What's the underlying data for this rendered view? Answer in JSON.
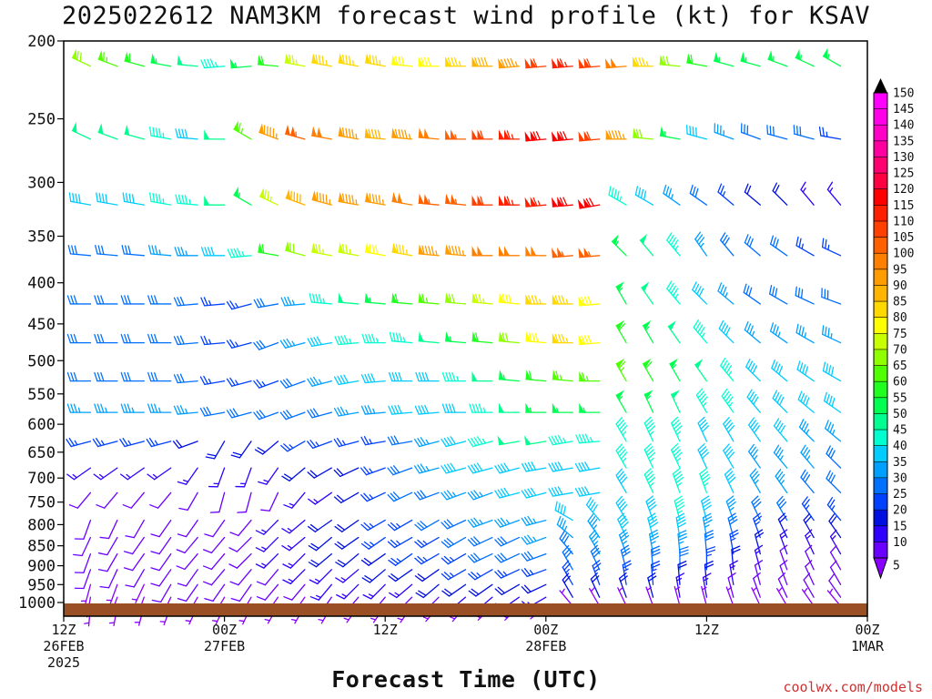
{
  "chart_data": {
    "type": "wind_barb_time_height",
    "title": "2025022612 NAM3KM forecast wind profile (kt) for KSAV",
    "xlabel": "Forecast Time (UTC)",
    "credit": "coolwx.com/models",
    "y_axis": {
      "unit": "hPa",
      "scale": "log",
      "range": [
        1040,
        200
      ],
      "ticks": [
        200,
        250,
        300,
        350,
        400,
        450,
        500,
        550,
        600,
        650,
        700,
        750,
        800,
        850,
        900,
        950,
        1000
      ]
    },
    "x_axis": {
      "range_hours": [
        0,
        60
      ],
      "ticks": [
        {
          "hour": 0,
          "lines": [
            "12Z",
            "26FEB",
            "2025"
          ]
        },
        {
          "hour": 12,
          "lines": [
            "00Z",
            "27FEB"
          ]
        },
        {
          "hour": 24,
          "lines": [
            "12Z"
          ]
        },
        {
          "hour": 36,
          "lines": [
            "00Z",
            "28FEB"
          ]
        },
        {
          "hour": 48,
          "lines": [
            "12Z"
          ]
        },
        {
          "hour": 60,
          "lines": [
            "00Z",
            "1MAR"
          ]
        }
      ]
    },
    "colorbar": {
      "unit": "kt",
      "levels": [
        5,
        10,
        15,
        20,
        25,
        30,
        35,
        40,
        45,
        50,
        55,
        60,
        65,
        70,
        75,
        80,
        85,
        90,
        95,
        100,
        105,
        110,
        115,
        120,
        125,
        130,
        135,
        140,
        145,
        150
      ],
      "colors": [
        "#8a00ff",
        "#6a00ff",
        "#3000ff",
        "#0010e0",
        "#0040ff",
        "#0070ff",
        "#00a0ff",
        "#00ccff",
        "#00ffd0",
        "#00ff90",
        "#00ff50",
        "#20ff20",
        "#50ff00",
        "#90ff00",
        "#c8ff00",
        "#ffff00",
        "#ffd800",
        "#ffb400",
        "#ff9c00",
        "#ff8000",
        "#ff6000",
        "#ff4000",
        "#ff2000",
        "#ff0000",
        "#ff0040",
        "#ff0070",
        "#ff00a0",
        "#ff00c8",
        "#ff00e8",
        "#ff00ff"
      ]
    },
    "levels_hpa": [
      215,
      265,
      320,
      370,
      425,
      475,
      530,
      580,
      630,
      680,
      730,
      790,
      830,
      870,
      910,
      950,
      985,
      1010
    ],
    "hours": [
      0,
      2,
      4,
      6,
      8,
      10,
      12,
      14,
      16,
      18,
      20,
      22,
      24,
      26,
      28,
      30,
      32,
      34,
      36,
      38,
      40,
      42,
      44,
      46,
      48,
      50,
      52,
      54,
      56,
      58,
      60
    ],
    "wind_speed_kt": [
      [
        75,
        70,
        65,
        60,
        55,
        50,
        45,
        55,
        60,
        75,
        85,
        85,
        85,
        80,
        80,
        85,
        90,
        95,
        110,
        115,
        110,
        100,
        85,
        70,
        60,
        55,
        55,
        55,
        55,
        55,
        55
      ],
      [
        50,
        50,
        50,
        50,
        45,
        40,
        50,
        65,
        95,
        105,
        100,
        95,
        90,
        95,
        100,
        105,
        110,
        115,
        120,
        120,
        110,
        95,
        70,
        55,
        40,
        35,
        30,
        30,
        30,
        25,
        25
      ],
      [
        40,
        40,
        40,
        40,
        45,
        45,
        50,
        55,
        75,
        90,
        95,
        95,
        95,
        100,
        105,
        105,
        110,
        115,
        115,
        120,
        120,
        45,
        40,
        35,
        30,
        25,
        20,
        20,
        15,
        15,
        10
      ],
      [
        30,
        30,
        30,
        30,
        35,
        35,
        40,
        45,
        60,
        70,
        75,
        75,
        80,
        85,
        95,
        95,
        100,
        100,
        100,
        105,
        105,
        55,
        50,
        45,
        35,
        30,
        30,
        30,
        25,
        25,
        25
      ],
      [
        30,
        30,
        30,
        30,
        30,
        30,
        25,
        25,
        30,
        35,
        45,
        50,
        55,
        60,
        65,
        70,
        75,
        80,
        85,
        85,
        80,
        55,
        50,
        45,
        40,
        35,
        30,
        30,
        30,
        30,
        30
      ],
      [
        30,
        30,
        30,
        30,
        30,
        30,
        25,
        25,
        30,
        35,
        40,
        45,
        45,
        45,
        50,
        55,
        60,
        70,
        80,
        85,
        80,
        60,
        55,
        50,
        45,
        40,
        35,
        35,
        35,
        35,
        35
      ],
      [
        30,
        30,
        30,
        30,
        30,
        30,
        25,
        25,
        25,
        30,
        35,
        40,
        40,
        40,
        40,
        45,
        50,
        55,
        60,
        65,
        65,
        65,
        60,
        55,
        50,
        45,
        40,
        40,
        40,
        40,
        40
      ],
      [
        35,
        35,
        35,
        35,
        35,
        35,
        30,
        30,
        30,
        30,
        30,
        35,
        35,
        40,
        40,
        40,
        45,
        50,
        55,
        55,
        55,
        55,
        55,
        50,
        45,
        45,
        40,
        40,
        40,
        40,
        40
      ],
      [
        25,
        25,
        25,
        25,
        25,
        20,
        20,
        20,
        20,
        25,
        25,
        25,
        25,
        30,
        35,
        40,
        45,
        50,
        50,
        45,
        45,
        45,
        45,
        45,
        40,
        40,
        40,
        40,
        35,
        35,
        35
      ],
      [
        15,
        15,
        15,
        15,
        15,
        15,
        15,
        15,
        15,
        20,
        20,
        20,
        25,
        30,
        35,
        40,
        40,
        40,
        40,
        40,
        40,
        45,
        45,
        45,
        40,
        40,
        35,
        35,
        35,
        30,
        30
      ],
      [
        10,
        10,
        10,
        10,
        10,
        10,
        10,
        10,
        10,
        15,
        15,
        20,
        25,
        30,
        30,
        35,
        35,
        40,
        40,
        40,
        40,
        40,
        45,
        45,
        45,
        40,
        35,
        35,
        30,
        30,
        25
      ],
      [
        10,
        10,
        10,
        10,
        10,
        10,
        10,
        10,
        15,
        15,
        20,
        20,
        25,
        25,
        30,
        30,
        35,
        35,
        35,
        40,
        40,
        40,
        40,
        45,
        40,
        35,
        30,
        30,
        25,
        25,
        25
      ],
      [
        10,
        10,
        10,
        10,
        10,
        10,
        10,
        10,
        15,
        15,
        20,
        20,
        25,
        25,
        25,
        30,
        30,
        30,
        35,
        35,
        35,
        40,
        40,
        40,
        35,
        30,
        25,
        20,
        20,
        20,
        20
      ],
      [
        10,
        10,
        10,
        10,
        10,
        10,
        10,
        10,
        15,
        15,
        20,
        20,
        20,
        25,
        25,
        25,
        30,
        30,
        30,
        30,
        35,
        35,
        35,
        35,
        30,
        25,
        20,
        15,
        15,
        15,
        15
      ],
      [
        10,
        10,
        10,
        10,
        10,
        10,
        10,
        10,
        10,
        15,
        15,
        15,
        20,
        20,
        20,
        25,
        25,
        25,
        25,
        30,
        30,
        30,
        30,
        30,
        25,
        20,
        15,
        10,
        10,
        10,
        10
      ],
      [
        5,
        5,
        5,
        5,
        10,
        10,
        10,
        10,
        10,
        10,
        15,
        15,
        15,
        15,
        20,
        20,
        20,
        20,
        20,
        25,
        25,
        25,
        25,
        20,
        20,
        15,
        10,
        10,
        10,
        10,
        10
      ],
      [
        5,
        5,
        5,
        5,
        5,
        5,
        5,
        5,
        5,
        5,
        10,
        10,
        10,
        10,
        10,
        15,
        15,
        15,
        15,
        20,
        20,
        20,
        20,
        15,
        15,
        10,
        10,
        10,
        10,
        10,
        10
      ],
      [
        5,
        5,
        5,
        5,
        5,
        5,
        5,
        5,
        5,
        5,
        5,
        5,
        5,
        5,
        5,
        5,
        5,
        5,
        5,
        5,
        5,
        5,
        5,
        5,
        5,
        5,
        5,
        5,
        5,
        5,
        5
      ]
    ],
    "wind_dir_deg": [
      [
        300,
        295,
        290,
        285,
        280,
        275,
        265,
        265,
        275,
        280,
        280,
        280,
        280,
        275,
        270,
        270,
        270,
        265,
        265,
        265,
        265,
        265,
        270,
        275,
        280,
        285,
        285,
        290,
        295,
        300,
        300
      ],
      [
        300,
        295,
        290,
        285,
        280,
        275,
        270,
        300,
        290,
        285,
        280,
        280,
        275,
        275,
        275,
        270,
        270,
        270,
        265,
        265,
        265,
        270,
        275,
        280,
        285,
        290,
        290,
        285,
        285,
        280,
        280
      ],
      [
        280,
        280,
        280,
        280,
        280,
        275,
        270,
        300,
        295,
        290,
        285,
        280,
        280,
        280,
        275,
        275,
        270,
        270,
        265,
        265,
        260,
        300,
        300,
        305,
        305,
        310,
        310,
        315,
        320,
        320,
        330
      ],
      [
        275,
        275,
        275,
        275,
        275,
        270,
        270,
        265,
        280,
        285,
        280,
        280,
        280,
        280,
        275,
        275,
        270,
        270,
        270,
        265,
        265,
        315,
        320,
        320,
        325,
        320,
        310,
        305,
        300,
        295,
        290
      ],
      [
        270,
        270,
        270,
        270,
        270,
        265,
        265,
        255,
        260,
        265,
        275,
        275,
        275,
        275,
        275,
        275,
        275,
        275,
        270,
        270,
        265,
        330,
        325,
        320,
        315,
        310,
        305,
        300,
        295,
        290,
        285
      ],
      [
        270,
        270,
        270,
        270,
        270,
        265,
        265,
        255,
        250,
        255,
        260,
        265,
        270,
        275,
        275,
        275,
        275,
        275,
        275,
        270,
        265,
        330,
        330,
        325,
        320,
        315,
        310,
        305,
        300,
        295,
        290
      ],
      [
        270,
        270,
        270,
        270,
        270,
        265,
        260,
        255,
        250,
        250,
        255,
        260,
        265,
        270,
        270,
        270,
        270,
        275,
        275,
        275,
        270,
        330,
        330,
        330,
        325,
        320,
        315,
        310,
        305,
        300,
        295
      ],
      [
        270,
        270,
        270,
        270,
        270,
        265,
        260,
        255,
        250,
        250,
        255,
        260,
        265,
        265,
        265,
        270,
        270,
        270,
        270,
        270,
        270,
        330,
        335,
        335,
        330,
        325,
        320,
        315,
        310,
        305,
        300
      ],
      [
        260,
        255,
        255,
        255,
        255,
        250,
        210,
        215,
        230,
        240,
        250,
        255,
        260,
        260,
        255,
        255,
        255,
        260,
        260,
        260,
        265,
        330,
        335,
        335,
        335,
        330,
        325,
        320,
        315,
        310,
        305
      ],
      [
        235,
        235,
        235,
        235,
        235,
        215,
        200,
        200,
        215,
        230,
        240,
        245,
        250,
        250,
        255,
        255,
        255,
        255,
        260,
        260,
        260,
        330,
        335,
        335,
        335,
        330,
        325,
        320,
        320,
        315,
        310
      ],
      [
        220,
        220,
        220,
        220,
        220,
        210,
        195,
        195,
        205,
        220,
        235,
        240,
        245,
        245,
        250,
        250,
        250,
        255,
        255,
        260,
        260,
        330,
        335,
        340,
        340,
        335,
        330,
        325,
        320,
        315,
        310
      ],
      [
        200,
        200,
        205,
        210,
        215,
        215,
        215,
        220,
        225,
        230,
        235,
        235,
        240,
        240,
        240,
        245,
        250,
        250,
        255,
        300,
        320,
        330,
        340,
        345,
        345,
        340,
        335,
        330,
        325,
        320,
        315
      ],
      [
        200,
        205,
        210,
        215,
        215,
        220,
        220,
        225,
        225,
        230,
        230,
        235,
        235,
        240,
        240,
        240,
        245,
        245,
        250,
        310,
        325,
        335,
        345,
        350,
        350,
        345,
        340,
        335,
        330,
        325,
        320
      ],
      [
        195,
        200,
        210,
        215,
        215,
        220,
        220,
        225,
        225,
        225,
        230,
        230,
        235,
        235,
        240,
        240,
        245,
        245,
        250,
        320,
        330,
        340,
        350,
        355,
        355,
        350,
        345,
        340,
        335,
        330,
        325
      ],
      [
        190,
        200,
        205,
        210,
        215,
        215,
        220,
        220,
        220,
        225,
        225,
        230,
        230,
        235,
        235,
        240,
        240,
        245,
        250,
        330,
        335,
        345,
        355,
        360,
        360,
        355,
        345,
        340,
        335,
        330,
        325
      ],
      [
        185,
        195,
        200,
        205,
        210,
        215,
        215,
        215,
        220,
        220,
        220,
        225,
        225,
        230,
        230,
        235,
        235,
        240,
        245,
        330,
        340,
        350,
        355,
        355,
        355,
        350,
        345,
        340,
        335,
        330,
        325
      ],
      [
        180,
        190,
        200,
        200,
        205,
        210,
        210,
        210,
        215,
        215,
        215,
        220,
        220,
        225,
        225,
        230,
        230,
        235,
        240,
        330,
        335,
        340,
        345,
        350,
        350,
        345,
        340,
        335,
        330,
        325,
        320
      ],
      [
        180,
        185,
        190,
        195,
        200,
        205,
        205,
        205,
        210,
        210,
        210,
        215,
        215,
        215,
        220,
        220,
        225,
        225,
        230,
        320,
        330,
        335,
        340,
        345,
        345,
        340,
        335,
        330,
        325,
        320,
        320
      ]
    ]
  },
  "colors": {
    "ground": "#9a4f24",
    "frame": "#000000"
  }
}
